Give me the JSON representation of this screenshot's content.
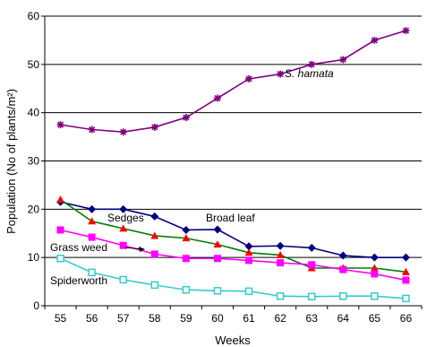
{
  "chart_data": {
    "type": "line",
    "xlabel": "Weeks",
    "ylabel": "Population (No of plants/m²)",
    "x": [
      55,
      56,
      57,
      58,
      59,
      60,
      61,
      62,
      63,
      64,
      65,
      66
    ],
    "ylim": [
      0,
      60
    ],
    "yticks": [
      0,
      10,
      20,
      30,
      40,
      50,
      60
    ],
    "grid": "horizontal",
    "series": [
      {
        "name": "S. hamata",
        "color": "#800080",
        "marker": "star",
        "values": [
          37.5,
          36.5,
          36,
          37,
          39,
          43,
          47,
          48,
          50,
          51,
          55,
          57
        ]
      },
      {
        "name": "Broad leaf",
        "color": "#000080",
        "marker": "diamond",
        "values": [
          21.5,
          20,
          20,
          18.5,
          15.7,
          15.8,
          12.3,
          12.4,
          12,
          10.4,
          10,
          10
        ]
      },
      {
        "name": "Sedges",
        "color": "#008000",
        "marker": "triangle",
        "markerColor": "#ff0000",
        "values": [
          22,
          17.5,
          16,
          14.5,
          14,
          12.7,
          11,
          10.5,
          7.8,
          7.8,
          7.8,
          7
        ]
      },
      {
        "name": "Grass weed",
        "color": "#ff00ff",
        "marker": "square",
        "values": [
          15.7,
          14.2,
          12.5,
          10.7,
          9.8,
          9.8,
          9.4,
          8.9,
          8.5,
          7.5,
          6.6,
          5.3
        ]
      },
      {
        "name": "Spiderworth",
        "color": "#33cccc",
        "marker": "open-square",
        "values": [
          9.8,
          6.9,
          5.4,
          4.3,
          3.3,
          3.1,
          3,
          2,
          1.9,
          2,
          2,
          1.5
        ]
      }
    ],
    "annotations": [
      {
        "text": "S. hamata",
        "series": 0
      },
      {
        "text": "Broad leaf",
        "series": 1
      },
      {
        "text": "Sedges",
        "series": 2
      },
      {
        "text": "Grass weed",
        "series": 3
      },
      {
        "text": "Spiderworth",
        "series": 4
      }
    ]
  }
}
